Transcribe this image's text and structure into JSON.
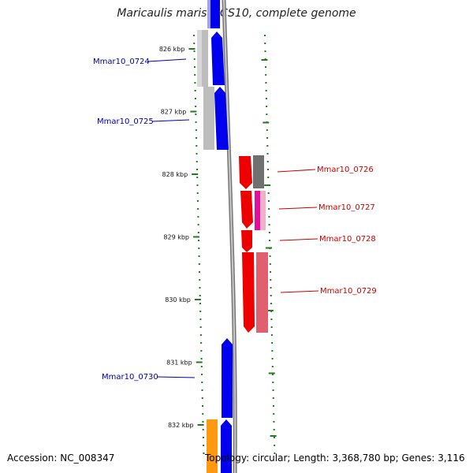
{
  "title": "Maricaulis maris MCS10, complete genome",
  "footer": {
    "accession": "Accession: NC_008347",
    "topology": "Topology: circular; Length: 3,368,780 bp; Genes: 3,116"
  },
  "colors": {
    "backbone": "#888888",
    "tick": "#1e7d1e",
    "forward_label": "#0000aa",
    "reverse_label": "#cc0000"
  },
  "ticks": [
    {
      "kbp": 826,
      "label": "826 kbp"
    },
    {
      "kbp": 827,
      "label": "827 kbp"
    },
    {
      "kbp": 828,
      "label": "828 kbp"
    },
    {
      "kbp": 829,
      "label": "829 kbp"
    },
    {
      "kbp": 830,
      "label": "830 kbp"
    },
    {
      "kbp": 831,
      "label": "831 kbp"
    },
    {
      "kbp": 832,
      "label": "832 kbp"
    }
  ],
  "labels": [
    {
      "text": "Mmar10_0724",
      "strand": "forward"
    },
    {
      "text": "Mmar10_0725",
      "strand": "forward"
    },
    {
      "text": "Mmar10_0726",
      "strand": "reverse"
    },
    {
      "text": "Mmar10_0727",
      "strand": "reverse"
    },
    {
      "text": "Mmar10_0728",
      "strand": "reverse"
    },
    {
      "text": "Mmar10_0729",
      "strand": "reverse"
    },
    {
      "text": "Mmar10_0730",
      "strand": "forward"
    }
  ]
}
